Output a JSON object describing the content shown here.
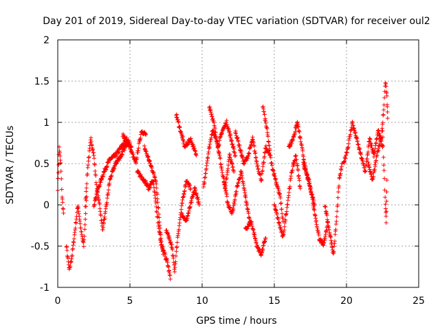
{
  "chart_data": {
    "type": "scatter",
    "title": "Day 201 of 2019, Sidereal Day-to-day VTEC variation (SDTVAR) for receiver oul2",
    "xlabel": "GPS time / hours",
    "ylabel": "SDTVAR / TECUs",
    "xlim": [
      0,
      25
    ],
    "ylim": [
      -1,
      2
    ],
    "xticks": [
      0,
      5,
      10,
      15,
      20,
      25
    ],
    "xtick_labels": [
      "0",
      "5",
      "10",
      "15",
      "20",
      "25"
    ],
    "yticks": [
      -1,
      -0.5,
      0,
      0.5,
      1,
      1.5,
      2
    ],
    "ytick_labels": [
      "-1",
      "-0.5",
      "0",
      "0.5",
      "1",
      "1.5",
      "2"
    ],
    "grid": true,
    "marker": "+",
    "series": [
      {
        "name": "SDTVAR",
        "color": "#ff0000",
        "tracks": [
          [
            [
              0.0,
              0.2
            ],
            [
              0.1,
              0.7
            ],
            [
              0.2,
              0.5
            ],
            [
              0.3,
              0.1
            ],
            [
              0.4,
              -0.1
            ]
          ],
          [
            [
              0.6,
              -0.5
            ],
            [
              0.8,
              -0.8
            ],
            [
              1.0,
              -0.6
            ],
            [
              1.2,
              -0.3
            ],
            [
              1.4,
              0.0
            ],
            [
              1.6,
              -0.3
            ],
            [
              1.8,
              -0.5
            ],
            [
              2.0,
              0.1
            ]
          ],
          [
            [
              1.9,
              0.0
            ],
            [
              2.1,
              0.5
            ],
            [
              2.3,
              0.8
            ],
            [
              2.5,
              0.6
            ],
            [
              2.7,
              0.2
            ],
            [
              2.9,
              0.0
            ],
            [
              3.1,
              -0.3
            ],
            [
              3.3,
              -0.1
            ],
            [
              3.6,
              0.3
            ],
            [
              4.0,
              0.5
            ],
            [
              4.4,
              0.6
            ],
            [
              4.8,
              0.75
            ]
          ],
          [
            [
              2.5,
              0.0
            ],
            [
              2.8,
              0.2
            ],
            [
              3.2,
              0.4
            ],
            [
              3.6,
              0.55
            ],
            [
              4.0,
              0.6
            ],
            [
              4.4,
              0.7
            ],
            [
              4.8,
              0.8
            ],
            [
              5.1,
              0.7
            ]
          ],
          [
            [
              4.5,
              0.85
            ],
            [
              5.0,
              0.7
            ],
            [
              5.4,
              0.5
            ],
            [
              5.8,
              0.9
            ],
            [
              6.1,
              0.85
            ]
          ],
          [
            [
              5.5,
              0.4
            ],
            [
              6.0,
              0.3
            ],
            [
              6.3,
              0.2
            ],
            [
              6.6,
              0.3
            ],
            [
              7.0,
              -0.3
            ],
            [
              7.3,
              -0.6
            ]
          ],
          [
            [
              6.0,
              0.7
            ],
            [
              6.4,
              0.5
            ],
            [
              6.8,
              0.3
            ],
            [
              7.2,
              -0.5
            ],
            [
              7.6,
              -0.7
            ],
            [
              7.8,
              -0.9
            ]
          ],
          [
            [
              7.5,
              -0.3
            ],
            [
              7.9,
              -0.5
            ],
            [
              8.1,
              -0.8
            ],
            [
              8.3,
              -0.4
            ],
            [
              8.6,
              0.0
            ],
            [
              8.9,
              0.3
            ],
            [
              9.2,
              0.2
            ]
          ],
          [
            [
              8.2,
              1.1
            ],
            [
              8.5,
              0.9
            ],
            [
              8.8,
              0.7
            ],
            [
              9.2,
              0.8
            ],
            [
              9.6,
              0.6
            ]
          ],
          [
            [
              8.6,
              -0.1
            ],
            [
              8.9,
              -0.2
            ],
            [
              9.2,
              0.0
            ],
            [
              9.5,
              0.2
            ],
            [
              9.8,
              0.0
            ]
          ],
          [
            [
              10.1,
              0.2
            ],
            [
              10.4,
              0.6
            ],
            [
              10.7,
              0.9
            ],
            [
              11.0,
              0.8
            ],
            [
              11.3,
              0.5
            ],
            [
              11.6,
              0.2
            ],
            [
              11.9,
              0.6
            ],
            [
              12.2,
              0.4
            ]
          ],
          [
            [
              10.5,
              1.2
            ],
            [
              10.8,
              1.0
            ],
            [
              11.1,
              0.7
            ],
            [
              11.4,
              0.9
            ],
            [
              11.7,
              1.0
            ],
            [
              12.0,
              0.8
            ],
            [
              12.3,
              0.6
            ]
          ],
          [
            [
              11.5,
              0.3
            ],
            [
              11.8,
              0.0
            ],
            [
              12.1,
              -0.1
            ],
            [
              12.4,
              0.2
            ],
            [
              12.7,
              0.4
            ],
            [
              13.0,
              0.1
            ],
            [
              13.3,
              -0.2
            ]
          ],
          [
            [
              12.3,
              0.9
            ],
            [
              12.6,
              0.7
            ],
            [
              12.9,
              0.5
            ],
            [
              13.2,
              0.6
            ],
            [
              13.5,
              0.8
            ],
            [
              13.8,
              0.5
            ],
            [
              14.1,
              0.3
            ],
            [
              14.4,
              0.7
            ],
            [
              14.7,
              0.6
            ]
          ],
          [
            [
              13.0,
              -0.3
            ],
            [
              13.4,
              -0.2
            ],
            [
              13.8,
              -0.5
            ],
            [
              14.1,
              -0.6
            ],
            [
              14.4,
              -0.4
            ]
          ],
          [
            [
              14.2,
              1.2
            ],
            [
              14.5,
              0.9
            ],
            [
              14.8,
              0.5
            ],
            [
              15.1,
              0.3
            ],
            [
              15.4,
              0.1
            ],
            [
              15.6,
              -0.2
            ]
          ],
          [
            [
              15.0,
              0.0
            ],
            [
              15.3,
              -0.2
            ],
            [
              15.6,
              -0.4
            ],
            [
              15.9,
              0.0
            ],
            [
              16.2,
              0.4
            ],
            [
              16.5,
              0.6
            ],
            [
              16.8,
              0.2
            ]
          ],
          [
            [
              16.0,
              0.7
            ],
            [
              16.3,
              0.8
            ],
            [
              16.6,
              1.0
            ],
            [
              16.9,
              0.7
            ],
            [
              17.2,
              0.4
            ],
            [
              17.5,
              0.2
            ],
            [
              17.8,
              0.0
            ]
          ],
          [
            [
              17.0,
              0.5
            ],
            [
              17.4,
              0.3
            ],
            [
              17.8,
              -0.1
            ],
            [
              18.1,
              -0.4
            ],
            [
              18.4,
              -0.5
            ],
            [
              18.7,
              -0.2
            ]
          ],
          [
            [
              18.5,
              0.0
            ],
            [
              18.8,
              -0.3
            ],
            [
              19.1,
              -0.6
            ],
            [
              19.3,
              -0.2
            ],
            [
              19.5,
              0.3
            ],
            [
              19.7,
              0.5
            ]
          ],
          [
            [
              19.8,
              0.5
            ],
            [
              20.1,
              0.7
            ],
            [
              20.4,
              1.0
            ],
            [
              20.7,
              0.8
            ],
            [
              21.0,
              0.6
            ],
            [
              21.3,
              0.4
            ],
            [
              21.6,
              0.8
            ],
            [
              21.9,
              0.6
            ],
            [
              22.2,
              0.9
            ],
            [
              22.5,
              0.7
            ]
          ],
          [
            [
              21.5,
              0.5
            ],
            [
              21.8,
              0.3
            ],
            [
              22.1,
              0.6
            ],
            [
              22.4,
              0.8
            ],
            [
              22.6,
              1.2
            ],
            [
              22.7,
              1.5
            ],
            [
              22.8,
              1.3
            ],
            [
              22.85,
              1.05
            ]
          ],
          [
            [
              22.5,
              0.9
            ],
            [
              22.6,
              0.4
            ],
            [
              22.7,
              0.0
            ],
            [
              22.75,
              -0.2
            ],
            [
              22.8,
              0.3
            ]
          ]
        ]
      }
    ]
  }
}
